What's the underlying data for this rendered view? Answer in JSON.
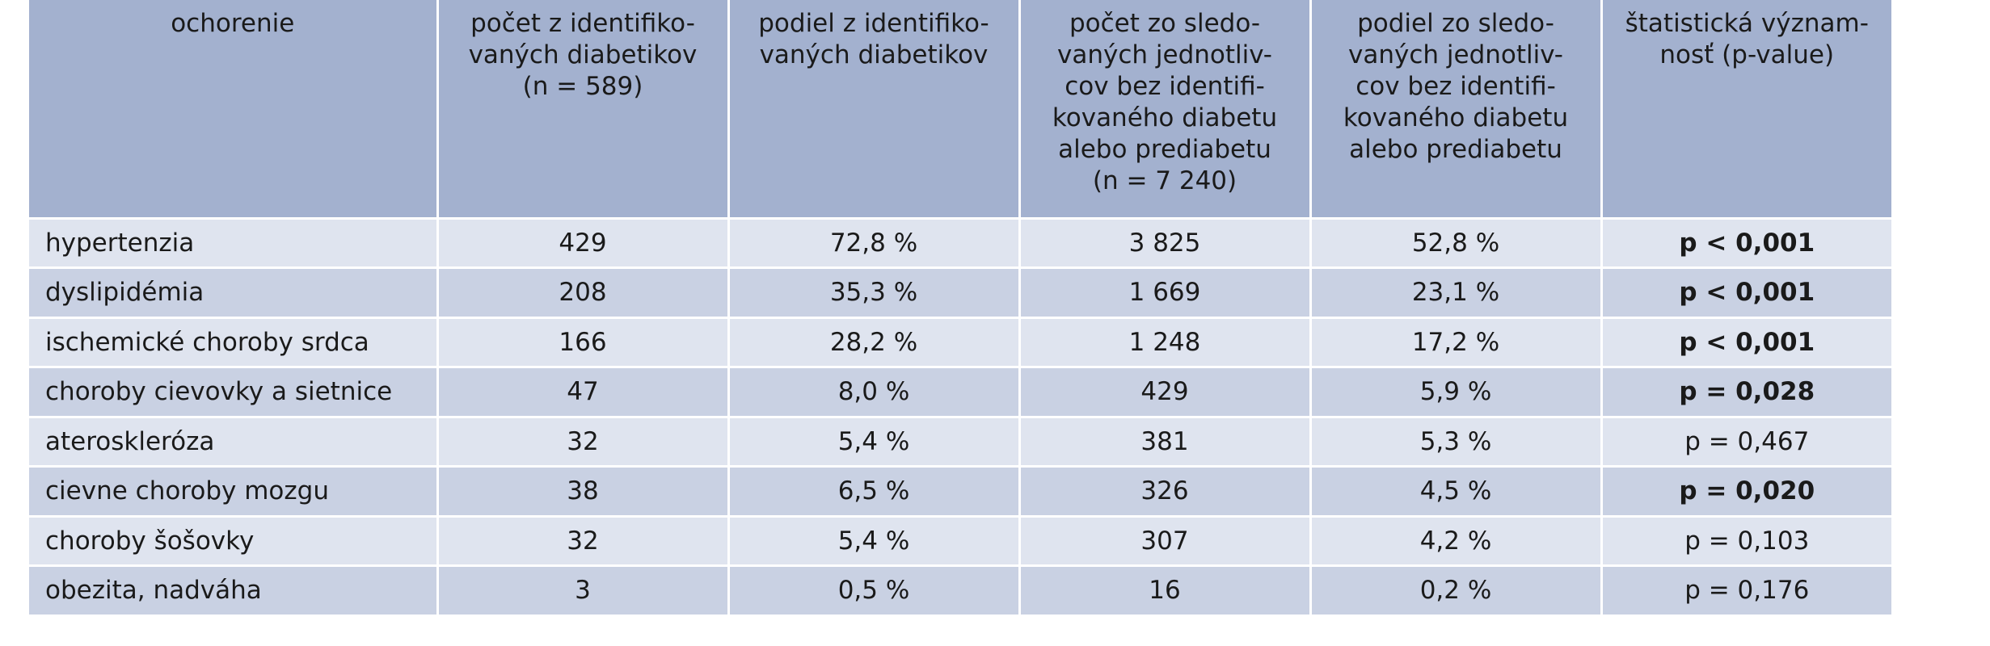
{
  "table": {
    "headers": [
      "ochorenie",
      "počet z identifiko-\nvaných diabetikov\n(n = 589)",
      "podiel z identifiko-\nvaných diabetikov",
      "počet zo sledo-\nvaných jednotliv-\ncov bez identifi-\nkovaného diabetu\nalebo prediabetu\n(n = 7 240)",
      "podiel zo sledo-\nvaných jednotliv-\ncov bez identifi-\nkovaného diabetu\nalebo prediabetu",
      "štatistická význam-\nnosť (p-value)"
    ],
    "rows": [
      [
        "hypertenzia",
        "429",
        "72,8 %",
        "3 825",
        "52,8 %",
        "p < 0,001"
      ],
      [
        "dyslipidémia",
        "208",
        "35,3 %",
        "1 669",
        "23,1 %",
        "p < 0,001"
      ],
      [
        "ischemické choroby srdca",
        "166",
        "28,2 %",
        "1 248",
        "17,2 %",
        "p < 0,001"
      ],
      [
        "choroby cievovky a sietnice",
        "47",
        "8,0 %",
        "429",
        "5,9 %",
        "p = 0,028"
      ],
      [
        "ateroskleróza",
        "32",
        "5,4 %",
        "381",
        "5,3 %",
        "p = 0,467"
      ],
      [
        "cievne choroby mozgu",
        "38",
        "6,5 %",
        "326",
        "4,5 %",
        "p = 0,020"
      ],
      [
        "choroby šošovky",
        "32",
        "5,4 %",
        "307",
        "4,2 %",
        "p = 0,103"
      ],
      [
        "obezita, nadváha",
        "3",
        "0,5 %",
        "16",
        "0,2 %",
        "p = 0,176"
      ]
    ],
    "significant_rows": [
      true,
      true,
      true,
      true,
      false,
      true,
      false,
      false
    ],
    "colors": {
      "header_bg": "#a3b1cf",
      "row_light": "#dfe4ef",
      "row_dark": "#c9d1e3",
      "grid": "#ffffff"
    }
  }
}
